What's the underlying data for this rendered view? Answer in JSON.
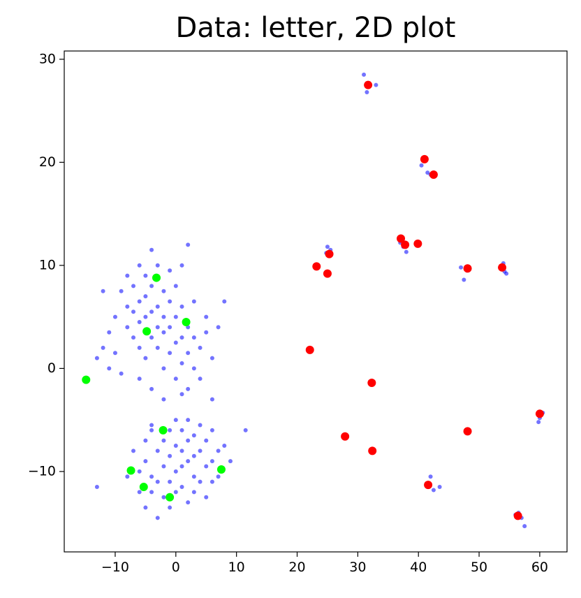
{
  "chart_data": {
    "type": "scatter",
    "title": "Data: letter, 2D plot",
    "xlim": [
      -18.4,
      64.5
    ],
    "ylim": [
      -17.8,
      30.8
    ],
    "xticks": [
      {
        "value": -10,
        "label": "−10"
      },
      0,
      10,
      20,
      30,
      40,
      50,
      60
    ],
    "yticks": [
      {
        "value": -10,
        "label": "−10"
      },
      0,
      10,
      20,
      30
    ],
    "grid": false,
    "series": [
      {
        "color": "#0000ff",
        "x": [
          -12,
          -11,
          -10,
          -9,
          -8,
          -8,
          -7,
          -7,
          -7,
          -6,
          -6,
          -6,
          -5,
          -5,
          -5,
          -5,
          -4,
          -4,
          -4,
          -4,
          -3,
          -3,
          -3,
          -3,
          -2,
          -2,
          -2,
          -2,
          -1,
          -1,
          -1,
          -1,
          0,
          0,
          0,
          0,
          1,
          1,
          1,
          1,
          2,
          2,
          2,
          2,
          3,
          3,
          3,
          4,
          4,
          5,
          5,
          6,
          7,
          8,
          -13,
          -11,
          -9,
          -10,
          -6,
          -4,
          -2,
          1,
          -12,
          -8,
          -6,
          6,
          -7,
          -6,
          -6,
          -5,
          -5,
          -5,
          -4,
          -4,
          -4,
          -3,
          -3,
          -3,
          -2,
          -2,
          -2,
          -1,
          -1,
          -1,
          -1,
          0,
          0,
          0,
          0,
          1,
          1,
          1,
          1,
          2,
          2,
          2,
          2,
          3,
          3,
          3,
          3,
          4,
          4,
          4,
          5,
          5,
          5,
          6,
          6,
          6,
          7,
          7,
          8,
          9,
          11.5,
          -13,
          -4,
          -8,
          31,
          32,
          31.5,
          33,
          40.5,
          41.5,
          42,
          25,
          24.8,
          25.5,
          37.5,
          38,
          37,
          47,
          47.5,
          48,
          54,
          54.2,
          54.5,
          60,
          60.5,
          59.8,
          42,
          42.5,
          43.5,
          56.5,
          57,
          57.5,
          56
        ],
        "y": [
          2,
          3.5,
          5,
          7.5,
          4,
          6,
          3,
          5.5,
          8,
          2,
          4.5,
          6.5,
          1,
          5,
          7,
          9,
          3,
          5.5,
          8,
          11.5,
          2,
          4,
          6,
          10,
          0,
          3.5,
          5,
          7.5,
          1.5,
          4,
          6.5,
          9.5,
          -1,
          2.5,
          5,
          8,
          0.5,
          3,
          6,
          10,
          -2,
          1.5,
          4,
          12,
          0,
          3,
          6.5,
          -1,
          2,
          3.5,
          5,
          1,
          4,
          6.5,
          1,
          0,
          -0.5,
          1.5,
          -1,
          -2,
          -3,
          -2.5,
          7.5,
          9,
          10,
          -3,
          -8,
          -10,
          -12,
          -7,
          -9,
          -13.5,
          -6,
          -10.5,
          -12,
          -8,
          -11,
          -14.5,
          -7,
          -9.5,
          -12.5,
          -6,
          -8.5,
          -11,
          -13.5,
          -5,
          -7.5,
          -10,
          -12,
          -6,
          -8,
          -9.5,
          -11.5,
          -5,
          -7,
          -9,
          -13,
          -6.5,
          -8.5,
          -10.5,
          -12,
          -5.5,
          -8,
          -11,
          -7,
          -9.5,
          -12.5,
          -6,
          -9,
          -11,
          -8,
          -10.5,
          -7.5,
          -9,
          -6,
          -11.5,
          -5.5,
          -10.5,
          28.5,
          27.5,
          26.8,
          27.5,
          19.7,
          19,
          18.8,
          11.8,
          11.2,
          11.5,
          11.8,
          11.3,
          12.2,
          9.8,
          8.6,
          9.5,
          10.2,
          9.4,
          9.2,
          -4.8,
          -4.3,
          -5.2,
          -10.5,
          -11.8,
          -11.5,
          -14,
          -14.5,
          -15.3,
          -14.2
        ]
      },
      {
        "color": "#ff0000",
        "x": [
          31.7,
          41.0,
          42.5,
          37.1,
          37.8,
          39.9,
          25.3,
          23.2,
          25.0,
          48.1,
          53.8,
          22.1,
          32.3,
          27.9,
          32.4,
          48.1,
          60.0,
          41.6,
          56.4
        ],
        "y": [
          27.5,
          20.3,
          18.8,
          12.6,
          12.0,
          12.1,
          11.1,
          9.9,
          9.2,
          9.7,
          9.8,
          1.8,
          -1.4,
          -6.6,
          -8.0,
          -6.1,
          -4.4,
          -11.3,
          -14.3
        ]
      },
      {
        "color": "#00ff00",
        "x": [
          -3.2,
          -4.8,
          1.7,
          -14.8,
          -2.1,
          -7.4,
          7.5,
          -5.3,
          -1.0
        ],
        "y": [
          8.8,
          3.6,
          4.5,
          -1.1,
          -6.0,
          -9.9,
          -9.8,
          -11.5,
          -12.5
        ]
      }
    ]
  }
}
